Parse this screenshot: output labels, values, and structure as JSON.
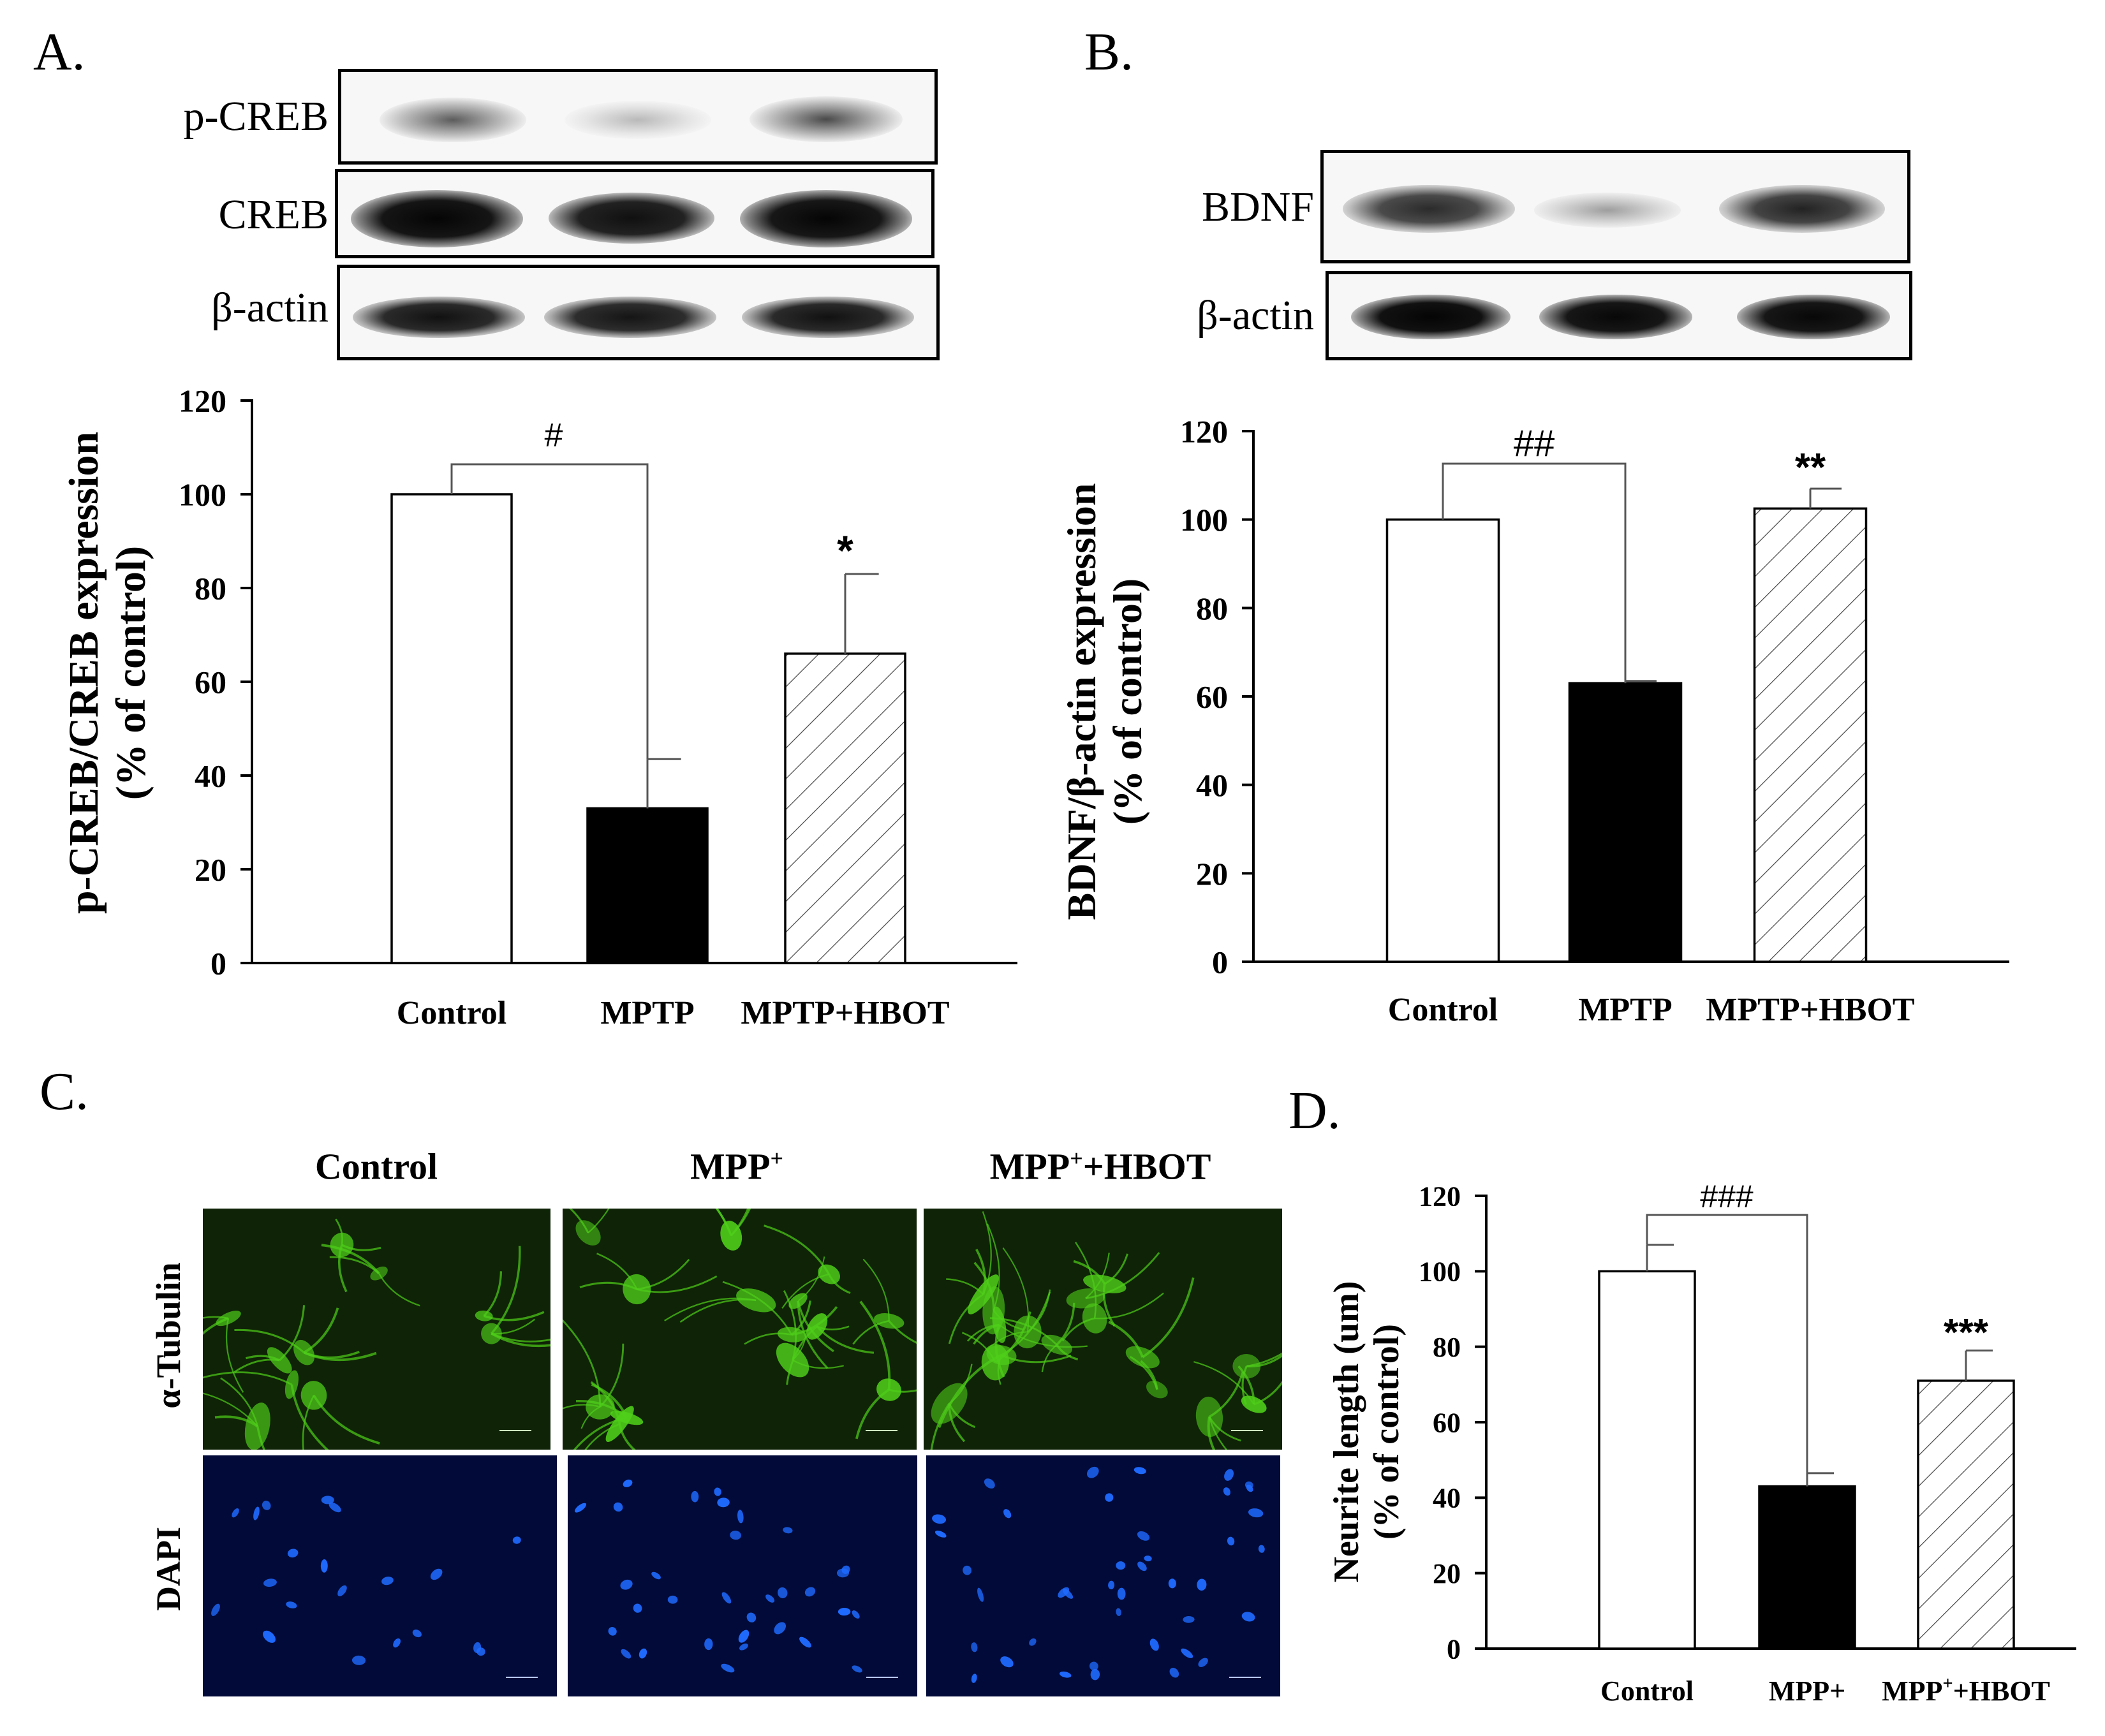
{
  "panels": {
    "a": {
      "label": "A."
    },
    "b": {
      "label": "B."
    },
    "c": {
      "label": "C."
    },
    "d": {
      "label": "D."
    }
  },
  "blots": {
    "a": {
      "rows": [
        "p-CREB",
        "CREB",
        "β-actin"
      ]
    },
    "b": {
      "rows": [
        "BDNF",
        "β-actin"
      ]
    }
  },
  "microscopy": {
    "columns": [
      "Control",
      "MPP",
      "MPP"
    ],
    "column_sup": [
      "",
      "+",
      "+"
    ],
    "column_suffix": [
      "",
      "",
      "+HBOT"
    ],
    "rows": [
      "α-Tubulin",
      "DAPI"
    ],
    "colors": {
      "tubulin": "#4fcf1a",
      "dapi": "#1f6bff",
      "tubulin_bg": "#0f2306",
      "dapi_bg": "#020a3a"
    }
  },
  "chart_data": [
    {
      "id": "A",
      "type": "bar",
      "ylabel_line1": "p-CREB/CREB expression",
      "ylabel_line2": "(% of control)",
      "categories": [
        "Control",
        "MPTP",
        "MPTP+HBOT"
      ],
      "values": [
        100,
        33,
        66
      ],
      "errors": [
        0,
        10.5,
        17
      ],
      "fills": [
        "white",
        "black",
        "hatch"
      ],
      "ylim": [
        0,
        120
      ],
      "yticks": [
        0,
        20,
        40,
        60,
        80,
        100,
        120
      ],
      "annotations": {
        "bracket": "#",
        "stars": [
          "",
          "",
          "*"
        ]
      }
    },
    {
      "id": "B",
      "type": "bar",
      "ylabel_line1": "BDNF/β-actin expression",
      "ylabel_line2": "(% of control)",
      "categories": [
        "Control",
        "MPTP",
        "MPTP+HBOT"
      ],
      "values": [
        100,
        63,
        102.5
      ],
      "errors": [
        0,
        0.5,
        4.5
      ],
      "fills": [
        "white",
        "black",
        "hatch"
      ],
      "ylim": [
        0,
        120
      ],
      "yticks": [
        0,
        20,
        40,
        60,
        80,
        100,
        120
      ],
      "annotations": {
        "bracket": "##",
        "stars": [
          "",
          "",
          "**"
        ]
      }
    },
    {
      "id": "D",
      "type": "bar",
      "ylabel_line1": "Neurite length (um)",
      "ylabel_line2": "(% of control)",
      "categories": [
        "Control",
        "MPP+",
        "MPP+HBOT"
      ],
      "category_sup": [
        "",
        "",
        "+"
      ],
      "category_sup_pos": [
        0,
        0,
        3
      ],
      "values": [
        100,
        43,
        71
      ],
      "errors": [
        7,
        3.5,
        8
      ],
      "fills": [
        "white",
        "black",
        "hatch"
      ],
      "ylim": [
        0,
        120
      ],
      "yticks": [
        0,
        20,
        40,
        60,
        80,
        100,
        120
      ],
      "annotations": {
        "bracket": "###",
        "stars": [
          "",
          "",
          "***"
        ]
      }
    }
  ]
}
